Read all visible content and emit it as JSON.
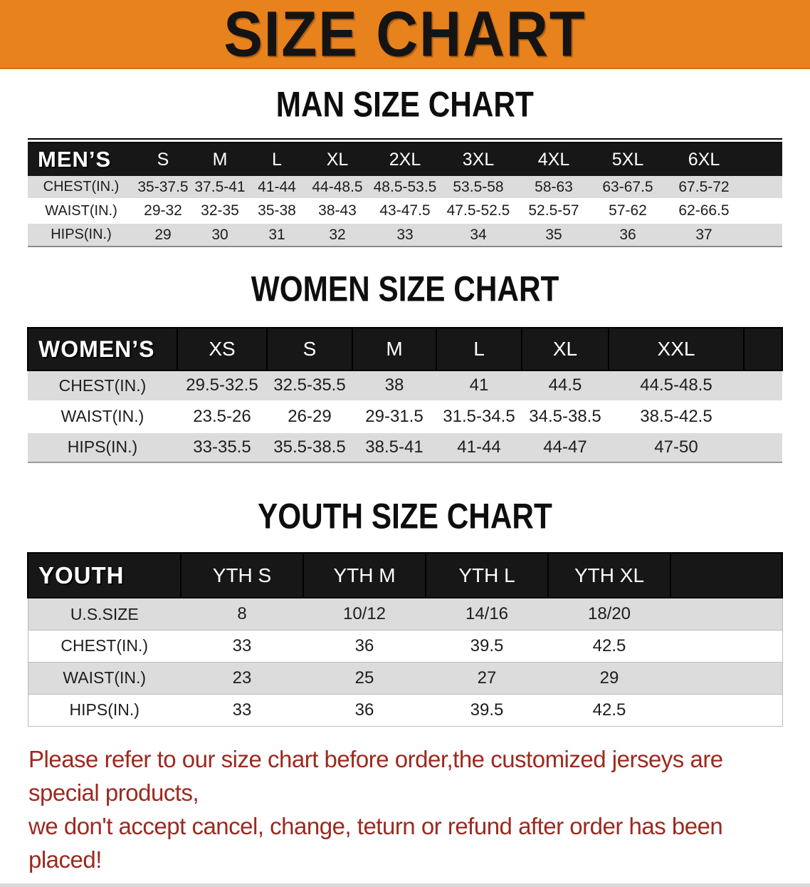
{
  "banner": {
    "title": "SIZE CHART"
  },
  "colors": {
    "banner_bg": "#E8821D",
    "header_bar": "#171717",
    "row_alt": "#DCDCDC",
    "disclaimer": "#9C291F"
  },
  "men": {
    "section_title": "MAN SIZE CHART",
    "corner_label": "MEN’S",
    "columns": [
      "S",
      "M",
      "L",
      "XL",
      "2XL",
      "3XL",
      "4XL",
      "5XL",
      "6XL"
    ],
    "rows": [
      {
        "label": "CHEST(IN.)",
        "values": [
          "35-37.5",
          "37.5-41",
          "41-44",
          "44-48.5",
          "48.5-53.5",
          "53.5-58",
          "58-63",
          "63-67.5",
          "67.5-72"
        ]
      },
      {
        "label": "WAIST(IN.)",
        "values": [
          "29-32",
          "32-35",
          "35-38",
          "38-43",
          "43-47.5",
          "47.5-52.5",
          "52.5-57",
          "57-62",
          "62-66.5"
        ]
      },
      {
        "label": "HIPS(IN.)",
        "values": [
          "29",
          "30",
          "31",
          "32",
          "33",
          "34",
          "35",
          "36",
          "37"
        ]
      }
    ]
  },
  "women": {
    "section_title": "WOMEN SIZE CHART",
    "corner_label": "WOMEN’S",
    "columns": [
      "XS",
      "S",
      "M",
      "L",
      "XL",
      "XXL"
    ],
    "rows": [
      {
        "label": "CHEST(IN.)",
        "values": [
          "29.5-32.5",
          "32.5-35.5",
          "38",
          "41",
          "44.5",
          "44.5-48.5"
        ]
      },
      {
        "label": "WAIST(IN.)",
        "values": [
          "23.5-26",
          "26-29",
          "29-31.5",
          "31.5-34.5",
          "34.5-38.5",
          "38.5-42.5"
        ]
      },
      {
        "label": "HIPS(IN.)",
        "values": [
          "33-35.5",
          "35.5-38.5",
          "38.5-41",
          "41-44",
          "44-47",
          "47-50"
        ]
      }
    ]
  },
  "youth": {
    "section_title": "YOUTH SIZE CHART",
    "corner_label": "YOUTH",
    "columns": [
      "YTH S",
      "YTH M",
      "YTH L",
      "YTH XL"
    ],
    "rows": [
      {
        "label": "U.S.SIZE",
        "values": [
          "8",
          "10/12",
          "14/16",
          "18/20"
        ]
      },
      {
        "label": "CHEST(IN.)",
        "values": [
          "33",
          "36",
          "39.5",
          "42.5"
        ]
      },
      {
        "label": "WAIST(IN.)",
        "values": [
          "23",
          "25",
          "27",
          "29"
        ]
      },
      {
        "label": "HIPS(IN.)",
        "values": [
          "33",
          "36",
          "39.5",
          "42.5"
        ]
      }
    ]
  },
  "disclaimer": {
    "line1": "Please refer to our size chart before order,the customized jerseys are special products,",
    "line2": "we don't accept cancel, change, teturn or refund after order has been placed!"
  }
}
